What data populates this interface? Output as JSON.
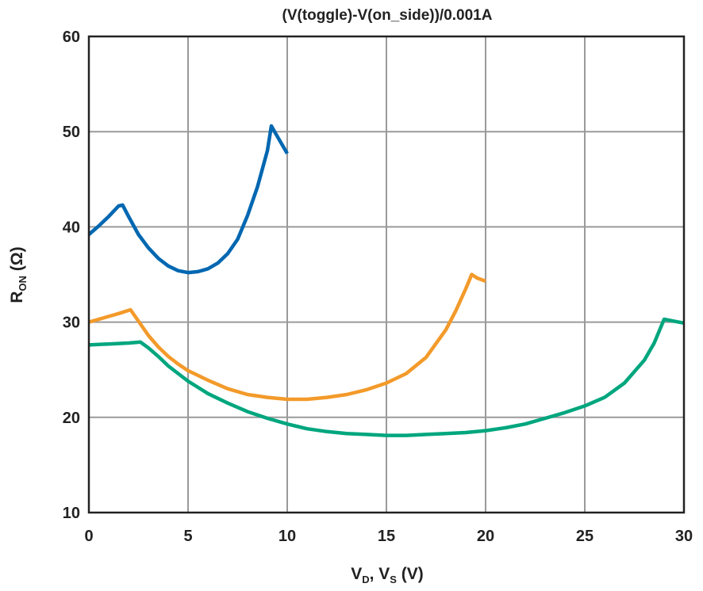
{
  "chart_data": {
    "type": "line",
    "title": "(V(toggle)-V(on_side))/0.001A",
    "xlabel": {
      "v1": "V",
      "v1_sub": "D",
      "sep": ", ",
      "v2": "V",
      "v2_sub": "S",
      "unit": " (V)"
    },
    "ylabel": {
      "main": "R",
      "sub": "ON",
      "unit": " (Ω)"
    },
    "xlim": [
      0,
      30
    ],
    "ylim": [
      10,
      60
    ],
    "xticks": [
      0,
      5,
      10,
      15,
      20,
      25,
      30
    ],
    "yticks": [
      10,
      20,
      30,
      40,
      50,
      60
    ],
    "grid": true,
    "series": [
      {
        "color": "#0067b1",
        "points": [
          [
            0,
            39.2
          ],
          [
            0.5,
            40.1
          ],
          [
            1,
            41.1
          ],
          [
            1.5,
            42.2
          ],
          [
            1.7,
            42.3
          ],
          [
            2,
            41.1
          ],
          [
            2.5,
            39.2
          ],
          [
            3,
            37.8
          ],
          [
            3.5,
            36.7
          ],
          [
            4,
            35.9
          ],
          [
            4.5,
            35.4
          ],
          [
            5,
            35.2
          ],
          [
            5.5,
            35.3
          ],
          [
            6,
            35.6
          ],
          [
            6.5,
            36.2
          ],
          [
            7,
            37.2
          ],
          [
            7.5,
            38.7
          ],
          [
            8,
            41.2
          ],
          [
            8.5,
            44.2
          ],
          [
            9,
            48.0
          ],
          [
            9.2,
            50.6
          ],
          [
            9.5,
            49.5
          ],
          [
            10,
            47.7
          ]
        ]
      },
      {
        "color": "#f39a2a",
        "points": [
          [
            0,
            30.0
          ],
          [
            0.5,
            30.3
          ],
          [
            1,
            30.6
          ],
          [
            1.5,
            30.9
          ],
          [
            2.1,
            31.3
          ],
          [
            2.5,
            30.1
          ],
          [
            3,
            28.6
          ],
          [
            3.5,
            27.4
          ],
          [
            4,
            26.4
          ],
          [
            4.5,
            25.6
          ],
          [
            5,
            24.9
          ],
          [
            6,
            23.9
          ],
          [
            7,
            23.0
          ],
          [
            8,
            22.4
          ],
          [
            9,
            22.1
          ],
          [
            10,
            21.9
          ],
          [
            11,
            21.9
          ],
          [
            12,
            22.1
          ],
          [
            13,
            22.4
          ],
          [
            14,
            22.9
          ],
          [
            15,
            23.6
          ],
          [
            16,
            24.6
          ],
          [
            17,
            26.3
          ],
          [
            18,
            29.2
          ],
          [
            18.5,
            31.2
          ],
          [
            19,
            33.5
          ],
          [
            19.3,
            35.0
          ],
          [
            19.6,
            34.6
          ],
          [
            20,
            34.3
          ]
        ]
      },
      {
        "color": "#00a67e",
        "points": [
          [
            0,
            27.6
          ],
          [
            1,
            27.7
          ],
          [
            2,
            27.8
          ],
          [
            2.6,
            27.9
          ],
          [
            3,
            27.3
          ],
          [
            3.5,
            26.4
          ],
          [
            4,
            25.4
          ],
          [
            5,
            23.8
          ],
          [
            6,
            22.5
          ],
          [
            7,
            21.5
          ],
          [
            8,
            20.6
          ],
          [
            9,
            19.9
          ],
          [
            10,
            19.3
          ],
          [
            11,
            18.8
          ],
          [
            12,
            18.5
          ],
          [
            13,
            18.3
          ],
          [
            14,
            18.2
          ],
          [
            15,
            18.1
          ],
          [
            16,
            18.1
          ],
          [
            17,
            18.2
          ],
          [
            18,
            18.3
          ],
          [
            19,
            18.4
          ],
          [
            20,
            18.6
          ],
          [
            21,
            18.9
          ],
          [
            22,
            19.3
          ],
          [
            23,
            19.9
          ],
          [
            24,
            20.5
          ],
          [
            25,
            21.2
          ],
          [
            26,
            22.1
          ],
          [
            27,
            23.6
          ],
          [
            28,
            26.0
          ],
          [
            28.5,
            27.8
          ],
          [
            29,
            30.3
          ],
          [
            29.5,
            30.1
          ],
          [
            30,
            29.9
          ]
        ]
      }
    ]
  }
}
